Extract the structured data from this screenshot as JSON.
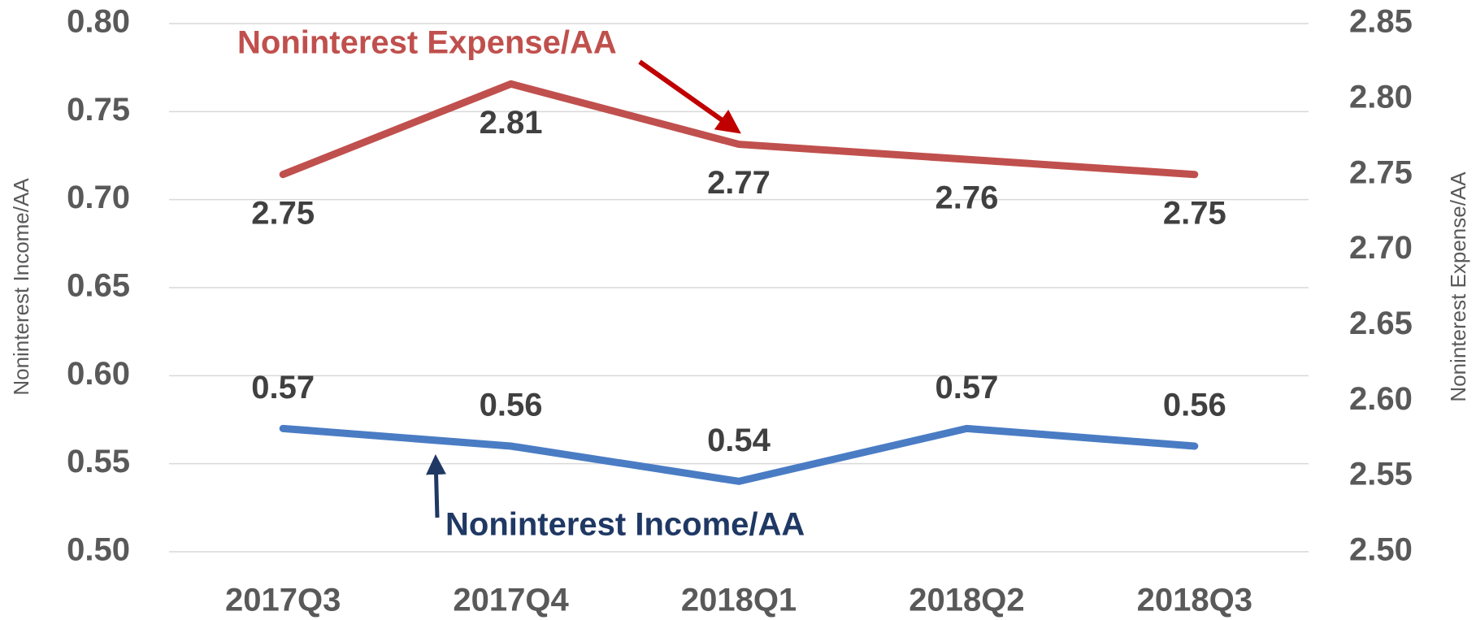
{
  "chart_data": {
    "type": "line",
    "categories": [
      "2017Q3",
      "2017Q4",
      "2018Q1",
      "2018Q2",
      "2018Q3"
    ],
    "series": [
      {
        "name": "Noninterest Income/AA",
        "color": "#4a7cc4",
        "values": [
          0.57,
          0.56,
          0.54,
          0.57,
          0.56
        ]
      },
      {
        "name": "Noninterest Expense/AA",
        "color": "#c0504d",
        "axis": "y2",
        "values": [
          2.75,
          2.81,
          2.77,
          2.76,
          2.75
        ]
      }
    ],
    "ylabel": "Noninterest Income/AA",
    "y2label": "Noninterest Expense/AA",
    "ylim": [
      0.5,
      0.8
    ],
    "yticks": [
      {
        "value": 0.5,
        "label": "0.50"
      },
      0.55,
      {
        "value": 0.6,
        "label": "0.60"
      },
      0.65,
      {
        "value": 0.7,
        "label": "0.70"
      },
      0.75,
      {
        "value": 0.8,
        "label": "0.80"
      }
    ],
    "y2lim": [
      2.5,
      2.85
    ],
    "y2ticks": [
      {
        "value": 2.5,
        "label": "2.50"
      },
      2.55,
      {
        "value": 2.6,
        "label": "2.60"
      },
      2.65,
      {
        "value": 2.7,
        "label": "2.70"
      },
      2.75,
      {
        "value": 2.8,
        "label": "2.80"
      },
      2.85
    ],
    "grid": true
  }
}
